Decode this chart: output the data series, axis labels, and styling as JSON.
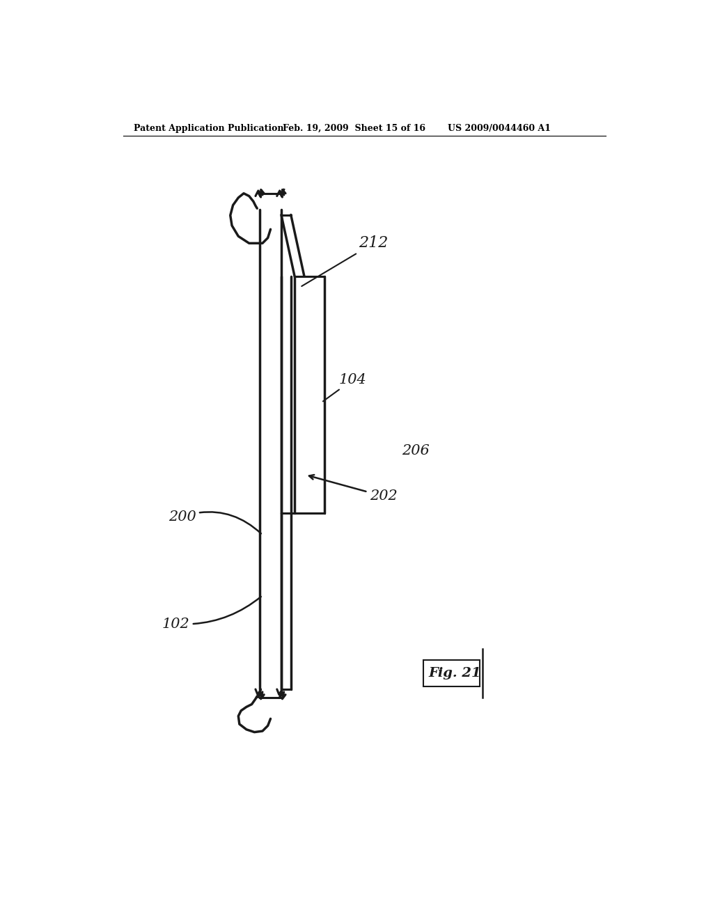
{
  "bg_color": "#ffffff",
  "header_text": "Patent Application Publication",
  "header_date": "Feb. 19, 2009  Sheet 15 of 16",
  "header_patent": "US 2009/0044460 A1",
  "fig_label": "Fig. 21",
  "line_color": "#1a1a1a",
  "line_width": 2.2
}
